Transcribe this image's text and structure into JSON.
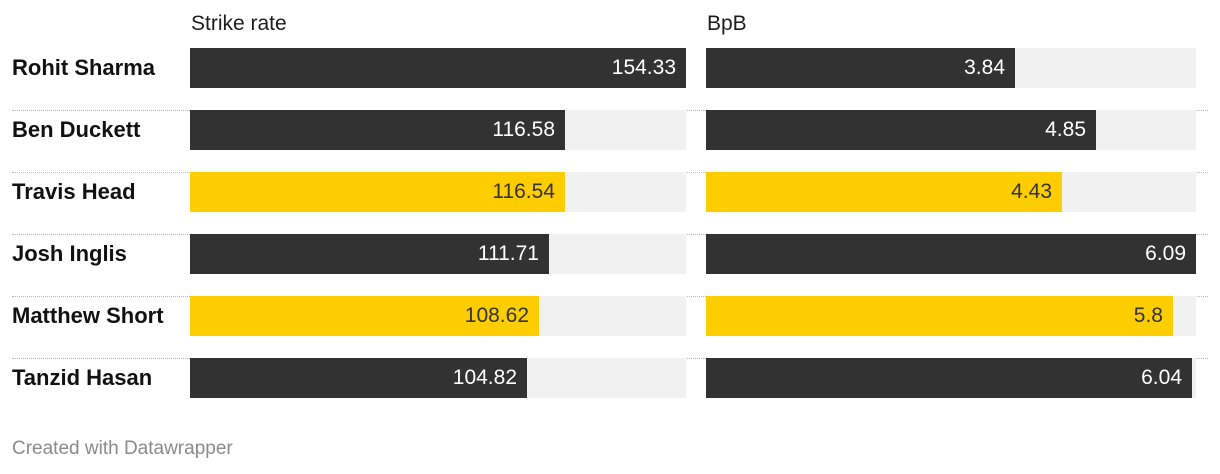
{
  "chart_data": {
    "type": "bar",
    "orientation": "horizontal",
    "categories": [
      "Rohit Sharma",
      "Ben Duckett",
      "Travis Head",
      "Josh Inglis",
      "Matthew Short",
      "Tanzid Hasan"
    ],
    "series": [
      {
        "name": "Strike rate",
        "values": [
          154.33,
          116.58,
          116.54,
          111.71,
          108.62,
          104.82
        ],
        "xlim": [
          0,
          154.33
        ]
      },
      {
        "name": "BpB",
        "values": [
          3.84,
          4.85,
          4.43,
          6.09,
          5.8,
          6.04
        ],
        "xlim": [
          0,
          6.09
        ]
      }
    ],
    "value_labels": [
      [
        "154.33",
        "116.58",
        "116.54",
        "111.71",
        "108.62",
        "104.82"
      ],
      [
        "3.84",
        "4.85",
        "4.43",
        "6.09",
        "5.8",
        "6.04"
      ]
    ],
    "highlighted": [
      false,
      false,
      true,
      false,
      true,
      false
    ],
    "colors": {
      "default": "#323232",
      "highlight": "#fecd00",
      "track": "#f1f1f1",
      "text_on_default": "#ffffff",
      "text_on_highlight": "#333333"
    },
    "grid": false,
    "legend": "none"
  },
  "footer": "Created with Datawrapper"
}
